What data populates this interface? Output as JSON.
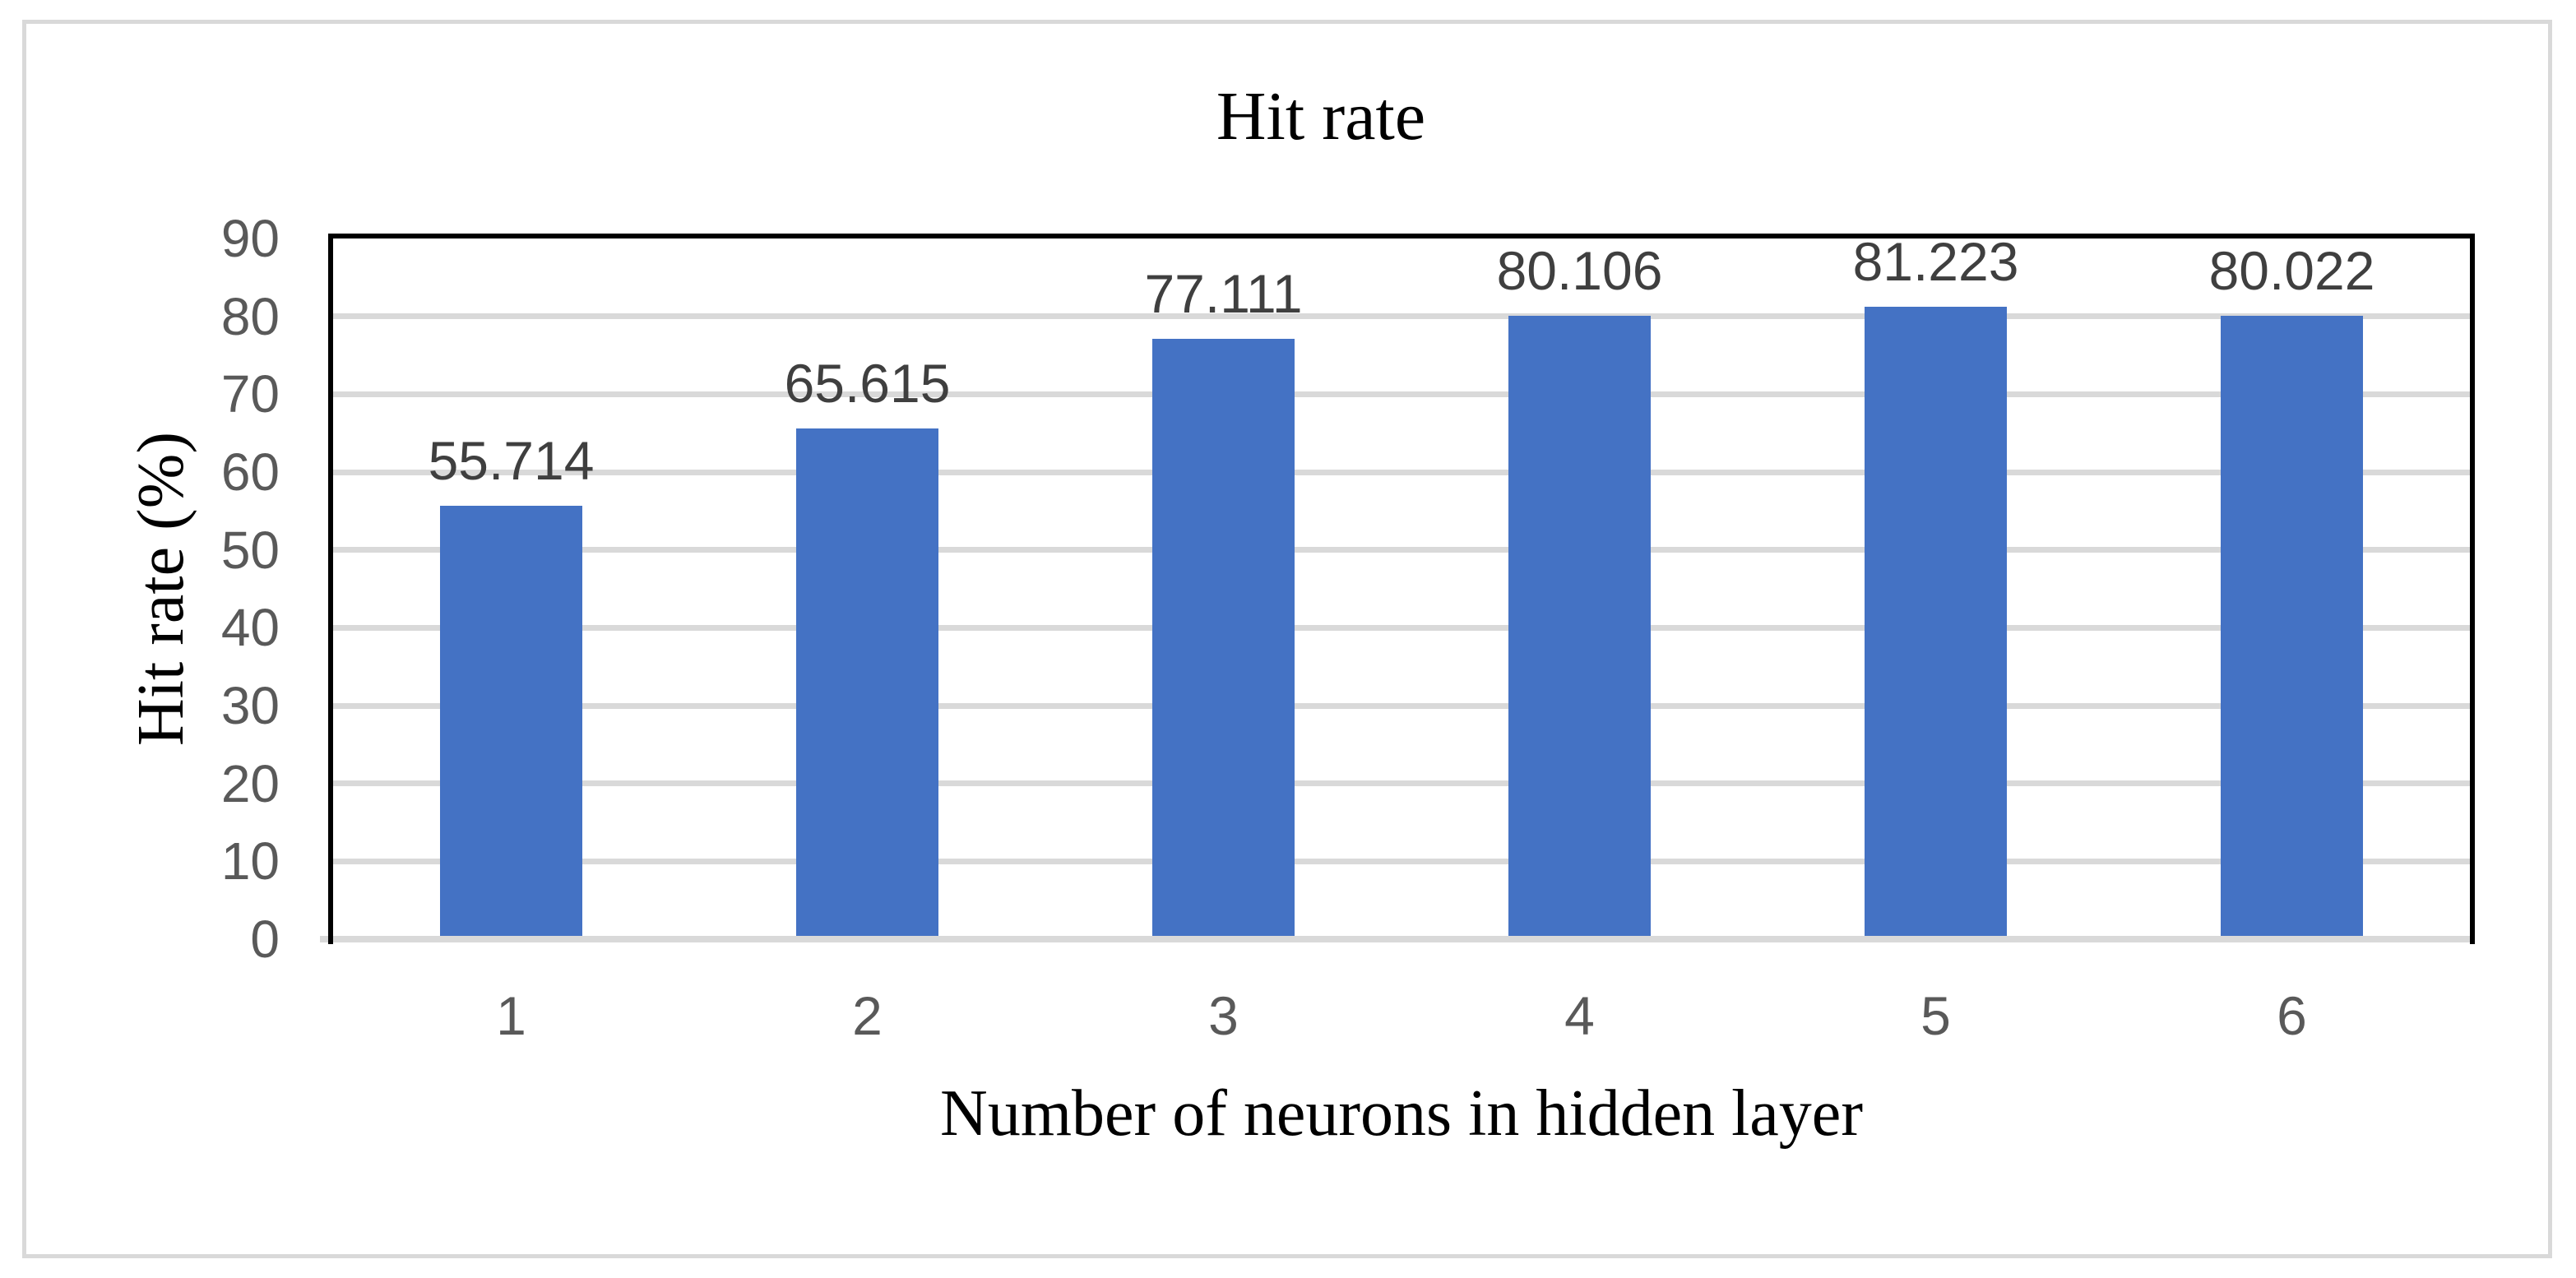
{
  "figure": {
    "title": "Hit rate"
  },
  "chart_data": {
    "type": "bar",
    "title": "Hit rate",
    "xlabel": "Number of neurons in hidden layer",
    "ylabel": "Hit rate (%)",
    "categories": [
      "1",
      "2",
      "3",
      "4",
      "5",
      "6"
    ],
    "values": [
      55.714,
      65.615,
      77.111,
      80.106,
      81.223,
      80.022
    ],
    "data_labels": [
      "55.714",
      "65.615",
      "77.111",
      "80.106",
      "81.223",
      "80.022"
    ],
    "series_name": "Hit rate",
    "ylim": [
      0,
      90
    ],
    "yticks": [
      0,
      10,
      20,
      30,
      40,
      50,
      60,
      70,
      80,
      90
    ],
    "ytick_step": 10,
    "grid": "horizontal",
    "legend": "none",
    "bar_gap_ratio": 0.6,
    "colors": {
      "bar": "#4472C4",
      "gridline": "#D9D9D9",
      "axis_line": "#D9D9D9",
      "plot_border": "#000000",
      "tick_label": "#595959",
      "data_label": "#3F3F3F",
      "title_text": "#000000",
      "outer_frame": "#D9D9D9",
      "background": "#FFFFFF"
    }
  }
}
